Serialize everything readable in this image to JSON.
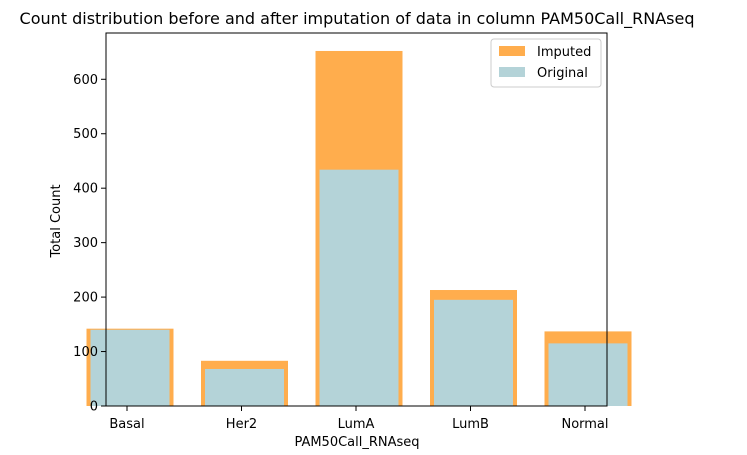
{
  "chart_data": {
    "type": "bar",
    "title": "Count distribution before and after imputation of data in column PAM50Call_RNAseq",
    "xlabel": "PAM50Call_RNAseq",
    "ylabel": "Total Count",
    "categories": [
      "Basal",
      "Her2",
      "LumA",
      "LumB",
      "Normal"
    ],
    "series": [
      {
        "name": "Imputed",
        "values": [
          142,
          83,
          652,
          213,
          137
        ],
        "color": "#ffad4d"
      },
      {
        "name": "Original",
        "values": [
          140,
          68,
          434,
          195,
          115
        ],
        "color": "#b4d3d8"
      }
    ],
    "yticks": [
      0,
      100,
      200,
      300,
      400,
      500,
      600
    ],
    "ylim": [
      0,
      685
    ],
    "grid": false,
    "legend": "top-right"
  }
}
